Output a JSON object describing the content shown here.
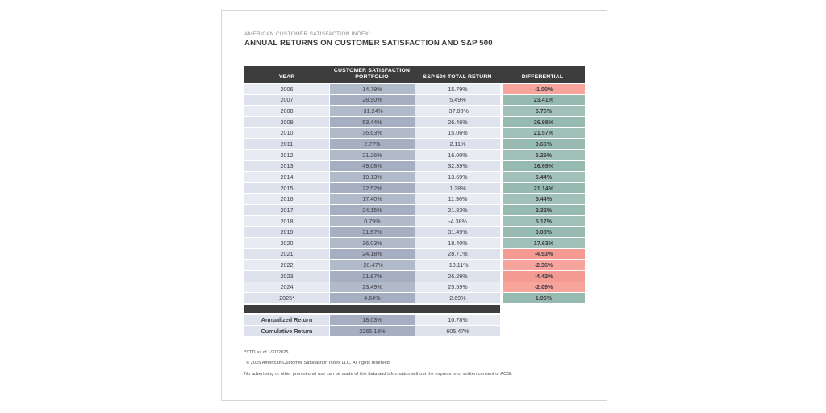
{
  "header": {
    "kicker": "AMERICAN CUSTOMER SATISFACTION INDEX:",
    "title": "ANNUAL RETURNS ON CUSTOMER SATISFACTION AND S&P 500"
  },
  "table": {
    "columns": [
      {
        "label": "YEAR"
      },
      {
        "label": "CUSTOMER SATISFACTION PORTFOLIO"
      },
      {
        "label": "S&P 500 TOTAL RETURN"
      },
      {
        "label": "DIFFERENTIAL"
      }
    ],
    "rows": [
      {
        "year": "2006",
        "portfolio": "14.79%",
        "sp500": "15.79%",
        "differential": "-1.00%",
        "diff_sign": "neg"
      },
      {
        "year": "2007",
        "portfolio": "28.90%",
        "sp500": "5.49%",
        "differential": "23.41%",
        "diff_sign": "pos"
      },
      {
        "year": "2008",
        "portfolio": "-31.24%",
        "sp500": "-37.00%",
        "differential": "5.76%",
        "diff_sign": "pos"
      },
      {
        "year": "2009",
        "portfolio": "53.44%",
        "sp500": "26.46%",
        "differential": "26.98%",
        "diff_sign": "pos"
      },
      {
        "year": "2010",
        "portfolio": "36.63%",
        "sp500": "15.06%",
        "differential": "21.57%",
        "diff_sign": "pos"
      },
      {
        "year": "2011",
        "portfolio": "2.77%",
        "sp500": "2.11%",
        "differential": "0.66%",
        "diff_sign": "pos"
      },
      {
        "year": "2012",
        "portfolio": "21.26%",
        "sp500": "16.00%",
        "differential": "5.26%",
        "diff_sign": "pos"
      },
      {
        "year": "2013",
        "portfolio": "49.08%",
        "sp500": "32.39%",
        "differential": "16.69%",
        "diff_sign": "pos"
      },
      {
        "year": "2014",
        "portfolio": "19.13%",
        "sp500": "13.69%",
        "differential": "5.44%",
        "diff_sign": "pos"
      },
      {
        "year": "2015",
        "portfolio": "22.52%",
        "sp500": "1.38%",
        "differential": "21.14%",
        "diff_sign": "pos"
      },
      {
        "year": "2016",
        "portfolio": "17.40%",
        "sp500": "11.96%",
        "differential": "5.44%",
        "diff_sign": "pos"
      },
      {
        "year": "2017",
        "portfolio": "24.15%",
        "sp500": "21.83%",
        "differential": "2.32%",
        "diff_sign": "pos"
      },
      {
        "year": "2018",
        "portfolio": "0.79%",
        "sp500": "-4.38%",
        "differential": "5.17%",
        "diff_sign": "pos"
      },
      {
        "year": "2019",
        "portfolio": "31.57%",
        "sp500": "31.49%",
        "differential": "0.08%",
        "diff_sign": "pos"
      },
      {
        "year": "2020",
        "portfolio": "36.03%",
        "sp500": "18.40%",
        "differential": "17.63%",
        "diff_sign": "pos"
      },
      {
        "year": "2021",
        "portfolio": "24.18%",
        "sp500": "28.71%",
        "differential": "-4.53%",
        "diff_sign": "neg"
      },
      {
        "year": "2022",
        "portfolio": "-20.47%",
        "sp500": "-18.11%",
        "differential": "-2.36%",
        "diff_sign": "neg"
      },
      {
        "year": "2023",
        "portfolio": "21.87%",
        "sp500": "26.29%",
        "differential": "-4.42%",
        "diff_sign": "neg"
      },
      {
        "year": "2024",
        "portfolio": "23.49%",
        "sp500": "25.59%",
        "differential": "-2.09%",
        "diff_sign": "neg"
      },
      {
        "year": "2025*",
        "portfolio": "4.64%",
        "sp500": "2.69%",
        "differential": "1.95%",
        "diff_sign": "pos"
      }
    ],
    "summary_rows": [
      {
        "label": "Annualized Return",
        "portfolio": "18.03%",
        "sp500": "10.78%"
      },
      {
        "label": "Cumulative Return",
        "portfolio": "2265.18%",
        "sp500": "605.47%"
      }
    ]
  },
  "footnotes": [
    "*YTD as of 1/31/2025",
    "© 2025 American Customer Satisfaction Index LLC. All rights reserved.",
    "No advertising or other promotional use can be made of this data and information without the express prior written consent of ACSI."
  ],
  "colors": {
    "header_bar": "#3d3d3d",
    "divider_bar": "#3d3d3d",
    "header_text": "#ffffff",
    "text": "#3e3e46",
    "light_cell": "#e8ebf2",
    "light_cell_alt": "#dee2ec",
    "portfolio_cell": "#b0bac9",
    "portfolio_cell_alt": "#a5afc1",
    "diff_positive": "#a1c0b7",
    "diff_positive_alt": "#97bab0",
    "diff_negative": "#f6a49c",
    "diff_negative_alt": "#f49a91"
  }
}
